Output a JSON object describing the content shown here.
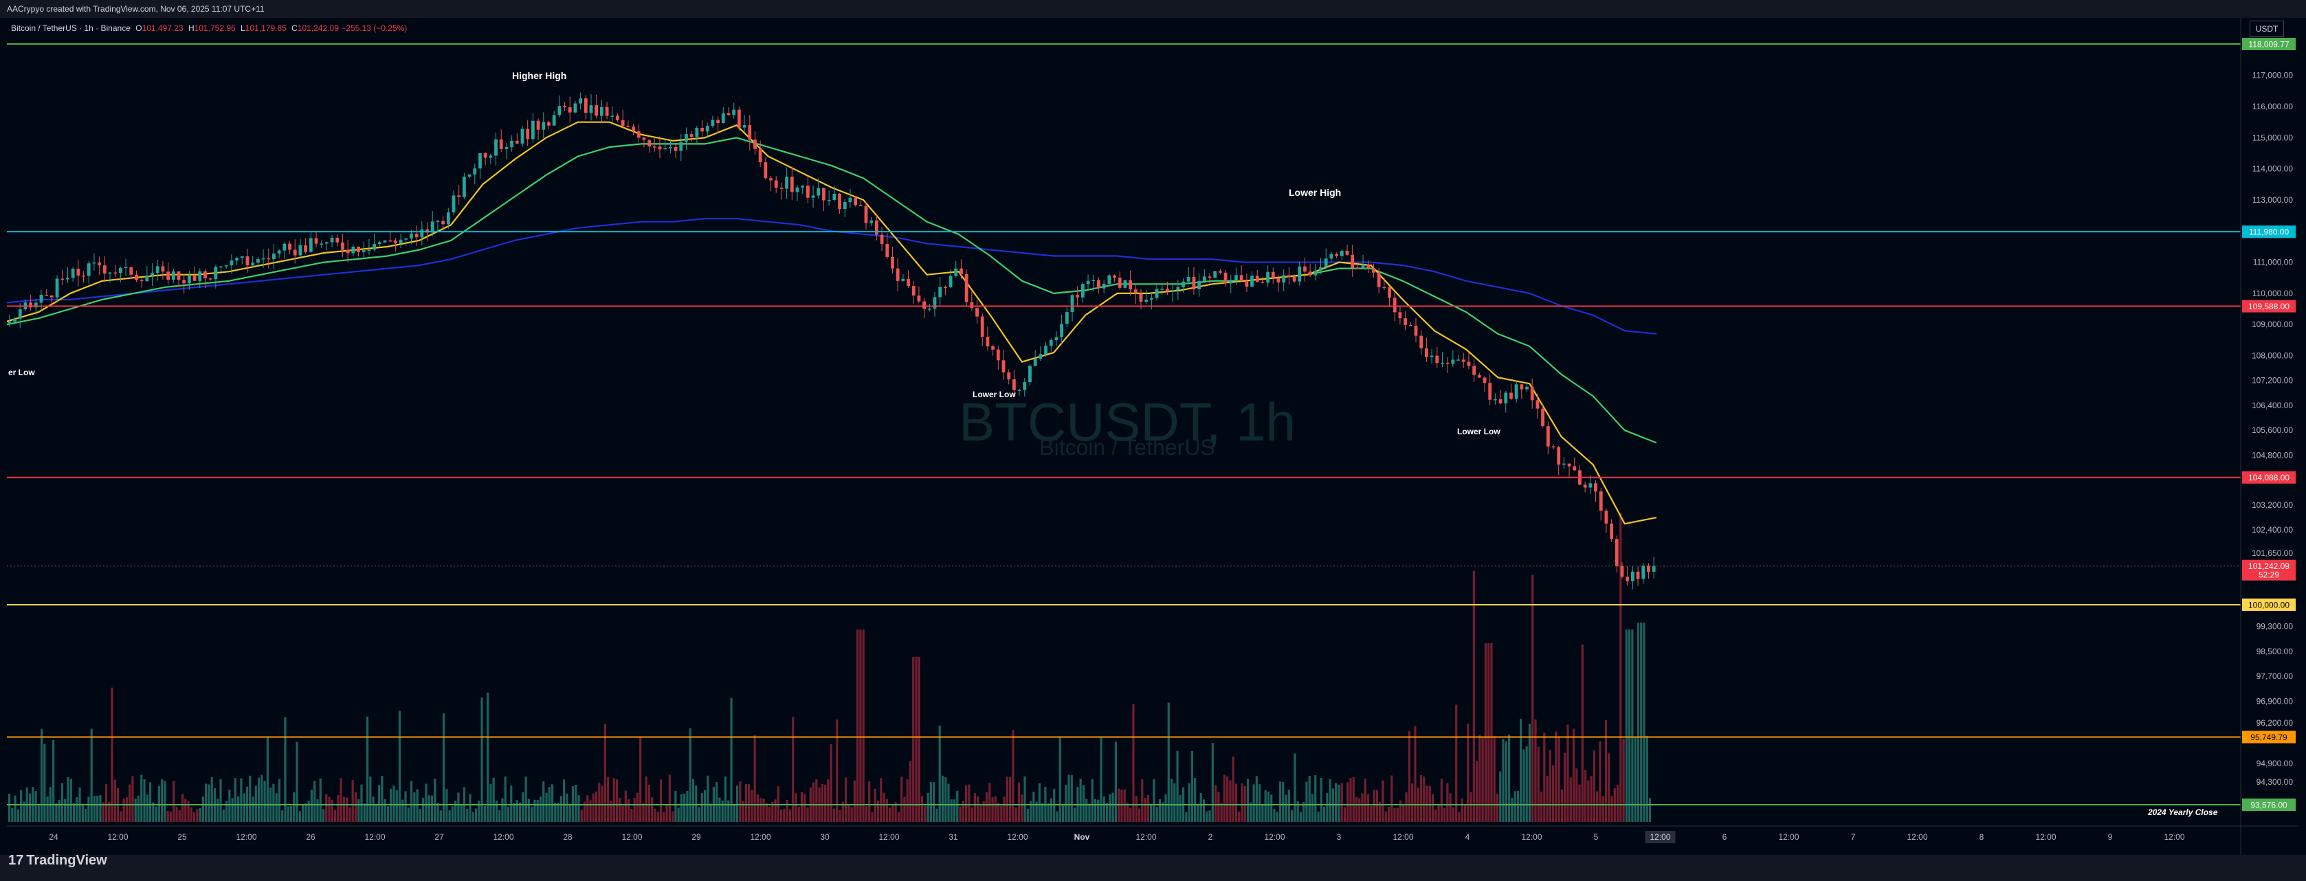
{
  "header": {
    "author_line": "AACrypyo created with TradingView.com, Nov 06, 2025 11:07 UTC+11"
  },
  "legend": {
    "symbol": "Bitcoin / TetherUS · 1h · Binance",
    "open_label": "O",
    "open": "101,497.23",
    "high_label": "H",
    "high": "101,752.96",
    "low_label": "L",
    "low": "101,179.85",
    "close_label": "C",
    "close": "101,242.09",
    "change": "−255.13 (−0.25%)"
  },
  "currency_button": "USDT",
  "watermark": {
    "title": "BTCUSDT, 1h",
    "subtitle": "Bitcoin / TetherUS"
  },
  "annotations": {
    "higher_high": "Higher High",
    "lower_high": "Lower High",
    "lower_low_left": "er Low",
    "lower_low_1": "Lower Low",
    "lower_low_2": "Lower Low",
    "yearly_close": "2024 Yearly Close"
  },
  "price_axis": {
    "ticks": [
      "117,000.00",
      "116,000.00",
      "115,000.00",
      "114,000.00",
      "113,000.00",
      "111,000.00",
      "110,000.00",
      "109,000.00",
      "108,000.00",
      "107,200.00",
      "106,400.00",
      "105,600.00",
      "104,800.00",
      "103,200.00",
      "102,400.00",
      "101,650.00",
      "99,300.00",
      "98,500.00",
      "97,700.00",
      "96,900.00",
      "96,200.00",
      "94,900.00",
      "94,300.00"
    ],
    "tick_values": [
      117000,
      116000,
      115000,
      114000,
      113000,
      111000,
      110000,
      109000,
      108000,
      107200,
      106400,
      105600,
      104800,
      103200,
      102400,
      101650,
      99300,
      98500,
      97700,
      96900,
      96200,
      94900,
      94300
    ]
  },
  "levels": [
    {
      "price": 118009.77,
      "label": "118,009.77",
      "color": "#4caf50"
    },
    {
      "price": 111980.0,
      "label": "111,980.00",
      "color": "#00bcd4"
    },
    {
      "price": 109588.0,
      "label": "109,588.00",
      "color": "#f23645"
    },
    {
      "price": 104088.0,
      "label": "104,088.00",
      "color": "#f23645"
    },
    {
      "price": 100000.0,
      "label": "100,000.00",
      "color": "#ffd54f"
    },
    {
      "price": 95749.79,
      "label": "95,749.79",
      "color": "#ff9800"
    },
    {
      "price": 93576.0,
      "label": "93,576.00",
      "color": "#4caf50"
    }
  ],
  "last_price": {
    "price": 101242.09,
    "label": "101,242.09",
    "countdown": "52:29",
    "color": "#f23645"
  },
  "time_axis": {
    "labels": [
      "24",
      "12:00",
      "25",
      "12:00",
      "26",
      "12:00",
      "27",
      "12:00",
      "28",
      "12:00",
      "29",
      "12:00",
      "30",
      "12:00",
      "31",
      "12:00",
      "Nov",
      "12:00",
      "2",
      "12:00",
      "3",
      "12:00",
      "4",
      "12:00",
      "5",
      "12:00",
      "6",
      "12:00",
      "7",
      "12:00",
      "8",
      "12:00",
      "9",
      "12:00"
    ],
    "highlight_label": "12:00"
  },
  "chart_data": {
    "type": "candlestick",
    "symbol": "BTCUSDT",
    "timeframe": "1h",
    "exchange": "Binance",
    "x_range": [
      "Oct 23 20:00",
      "Nov 9 20:00"
    ],
    "y_range": [
      93300,
      118500
    ],
    "closes_by_6h": [
      [
        109000,
        109700,
        110500,
        110900,
        110600,
        110700,
        110400,
        110900,
        111100,
        111400,
        111600,
        111500,
        111700,
        111800,
        112600,
        114500,
        114900,
        115500,
        116100,
        115700,
        115000,
        114700,
        115200,
        115900,
        113700,
        113400,
        113000,
        112800,
        110800,
        109500,
        110800,
        108300,
        106900,
        108500,
        110300,
        110500,
        109800,
        110200,
        110500,
        110400,
        110500,
        110700,
        111200,
        110800,
        109200,
        108000,
        107800,
        106600,
        107000,
        104500,
        103900,
        100900,
        101242
      ]
    ],
    "ema_fast_by_6h": [
      109100,
      109400,
      110000,
      110400,
      110500,
      110600,
      110600,
      110700,
      110900,
      111100,
      111300,
      111400,
      111500,
      111700,
      112200,
      113500,
      114300,
      115000,
      115500,
      115500,
      115100,
      114900,
      115000,
      115400,
      114400,
      113900,
      113400,
      113000,
      111800,
      110600,
      110700,
      109300,
      107800,
      108100,
      109300,
      110000,
      110000,
      110100,
      110300,
      110400,
      110500,
      110600,
      111000,
      110900,
      109800,
      108800,
      108200,
      107300,
      107100,
      105400,
      104500,
      102600,
      102800
    ],
    "ema_mid_by_6h": [
      109000,
      109200,
      109500,
      109800,
      110000,
      110200,
      110300,
      110400,
      110600,
      110800,
      111000,
      111100,
      111200,
      111400,
      111700,
      112400,
      113100,
      113800,
      114400,
      114700,
      114800,
      114800,
      114800,
      115000,
      114700,
      114400,
      114100,
      113700,
      113000,
      112300,
      111900,
      111200,
      110400,
      110000,
      110100,
      110300,
      110300,
      110300,
      110400,
      110400,
      110500,
      110600,
      110800,
      110800,
      110400,
      109900,
      109400,
      108700,
      108300,
      107400,
      106700,
      105600,
      105200
    ],
    "ema_slow_by_6h": [
      109700,
      109800,
      109800,
      109900,
      110000,
      110100,
      110200,
      110300,
      110400,
      110500,
      110600,
      110700,
      110800,
      110900,
      111100,
      111400,
      111700,
      111900,
      112100,
      112200,
      112300,
      112300,
      112400,
      112400,
      112300,
      112200,
      112000,
      111900,
      111800,
      111600,
      111500,
      111400,
      111300,
      111200,
      111200,
      111200,
      111100,
      111100,
      111100,
      111000,
      111000,
      111000,
      111000,
      111000,
      110900,
      110700,
      110400,
      110200,
      110000,
      109600,
      109300,
      108800,
      108700
    ],
    "volume_profile_note": "",
    "peak_volume_hours": [
      "Oct 30 12:00",
      "Oct 31 00:00",
      "Nov 4 12:00",
      "Nov 5 06:00"
    ]
  }
}
